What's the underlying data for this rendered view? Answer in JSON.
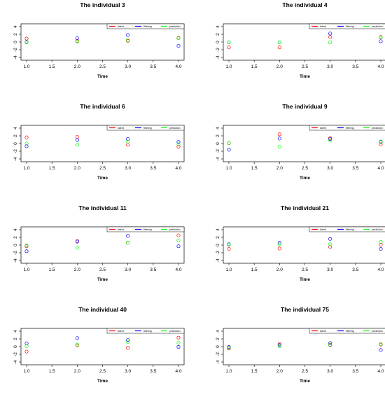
{
  "legend": {
    "entries": [
      "latent",
      "filtering",
      "prediction"
    ],
    "colors": [
      "#ff0000",
      "#0000ff",
      "#00ff00"
    ]
  },
  "chart_data": [
    {
      "type": "scatter",
      "title": "The individual 3",
      "xlabel": "Time",
      "ylabel": "",
      "x": [
        1,
        2,
        3,
        4
      ],
      "xticks": [
        "1.0",
        "1.5",
        "2.0",
        "2.5",
        "3.0",
        "3.5",
        "4.0"
      ],
      "yticks": [
        "-4",
        "-2",
        "0",
        "2",
        "4"
      ],
      "xlim": [
        1,
        4
      ],
      "ylim": [
        -4,
        4
      ],
      "series": [
        {
          "name": "latent",
          "values": [
            0.9,
            0.3,
            0.3,
            1.1
          ]
        },
        {
          "name": "filtering",
          "values": [
            0.0,
            1.0,
            1.8,
            -1.0
          ]
        },
        {
          "name": "prediction",
          "values": [
            -0.1,
            0.1,
            0.5,
            1.0
          ]
        }
      ]
    },
    {
      "type": "scatter",
      "title": "The individual 4",
      "xlabel": "Time",
      "ylabel": "",
      "x": [
        1,
        2,
        3,
        4
      ],
      "xticks": [
        "1.0",
        "1.5",
        "2.0",
        "2.5",
        "3.0",
        "3.5",
        "4.0"
      ],
      "yticks": [
        "-4",
        "-2",
        "0",
        "2",
        "4"
      ],
      "xlim": [
        1,
        4
      ],
      "ylim": [
        -4,
        4
      ],
      "series": [
        {
          "name": "latent",
          "values": [
            -1.4,
            -1.4,
            1.3,
            1.3
          ]
        },
        {
          "name": "filtering",
          "values": [
            -0.1,
            -0.1,
            2.2,
            0.2
          ]
        },
        {
          "name": "prediction",
          "values": [
            -0.1,
            -0.1,
            -0.1,
            1.2
          ]
        }
      ]
    },
    {
      "type": "scatter",
      "title": "The individual 6",
      "xlabel": "Time",
      "ylabel": "",
      "x": [
        1,
        2,
        3,
        4
      ],
      "xticks": [
        "1.0",
        "1.5",
        "2.0",
        "2.5",
        "3.0",
        "3.5",
        "4.0"
      ],
      "yticks": [
        "-4",
        "-2",
        "0",
        "2",
        "4"
      ],
      "xlim": [
        1,
        4
      ],
      "ylim": [
        -4,
        4
      ],
      "series": [
        {
          "name": "latent",
          "values": [
            1.6,
            1.7,
            -0.3,
            -0.8
          ]
        },
        {
          "name": "filtering",
          "values": [
            -0.7,
            0.9,
            1.2,
            0.4
          ]
        },
        {
          "name": "prediction",
          "values": [
            0.0,
            -0.3,
            0.5,
            -0.2
          ]
        }
      ]
    },
    {
      "type": "scatter",
      "title": "The individual 9",
      "xlabel": "Time",
      "ylabel": "",
      "x": [
        1,
        2,
        3,
        4
      ],
      "xticks": [
        "1.0",
        "1.5",
        "2.0",
        "2.5",
        "3.0",
        "3.5",
        "4.0"
      ],
      "yticks": [
        "-4",
        "-2",
        "0",
        "2",
        "4"
      ],
      "xlim": [
        1,
        4
      ],
      "ylim": [
        -4,
        4
      ],
      "series": [
        {
          "name": "latent",
          "values": [
            0.1,
            2.4,
            1.4,
            -0.2
          ]
        },
        {
          "name": "filtering",
          "values": [
            -1.6,
            1.3,
            1.2,
            0.5
          ]
        },
        {
          "name": "prediction",
          "values": [
            0.1,
            -0.8,
            0.8,
            0.4
          ]
        }
      ]
    },
    {
      "type": "scatter",
      "title": "The individual 11",
      "xlabel": "Time",
      "ylabel": "",
      "x": [
        1,
        2,
        3,
        4
      ],
      "xticks": [
        "1.0",
        "1.5",
        "2.0",
        "2.5",
        "3.0",
        "3.5",
        "4.0"
      ],
      "yticks": [
        "-4",
        "-2",
        "0",
        "2",
        "4"
      ],
      "xlim": [
        1,
        4
      ],
      "ylim": [
        -4,
        4
      ],
      "series": [
        {
          "name": "latent",
          "values": [
            -0.3,
            1.0,
            0.6,
            2.5
          ]
        },
        {
          "name": "filtering",
          "values": [
            -1.6,
            0.9,
            2.4,
            -0.3
          ]
        },
        {
          "name": "prediction",
          "values": [
            -0.1,
            -0.7,
            0.6,
            1.2
          ]
        }
      ]
    },
    {
      "type": "scatter",
      "title": "The individual 21",
      "xlabel": "Time",
      "ylabel": "",
      "x": [
        1,
        2,
        3,
        4
      ],
      "xticks": [
        "1.0",
        "1.5",
        "2.0",
        "2.5",
        "3.0",
        "3.5",
        "4.0"
      ],
      "yticks": [
        "-4",
        "-2",
        "0",
        "2",
        "4"
      ],
      "xlim": [
        1,
        4
      ],
      "ylim": [
        -4,
        4
      ],
      "series": [
        {
          "name": "latent",
          "values": [
            -1.0,
            -0.9,
            -0.5,
            0.1
          ]
        },
        {
          "name": "filtering",
          "values": [
            0.2,
            0.6,
            1.6,
            -1.0
          ]
        },
        {
          "name": "prediction",
          "values": [
            0.1,
            0.2,
            0.2,
            0.8
          ]
        }
      ]
    },
    {
      "type": "scatter",
      "title": "The individual 40",
      "xlabel": "Time",
      "ylabel": "",
      "x": [
        1,
        2,
        3,
        4
      ],
      "xticks": [
        "1.0",
        "1.5",
        "2.0",
        "2.5",
        "3.0",
        "3.5",
        "4.0"
      ],
      "yticks": [
        "-4",
        "-2",
        "0",
        "2",
        "4"
      ],
      "xlim": [
        1,
        4
      ],
      "ylim": [
        -4,
        4
      ],
      "series": [
        {
          "name": "latent",
          "values": [
            -1.3,
            0.3,
            -0.3,
            2.3
          ]
        },
        {
          "name": "filtering",
          "values": [
            0.8,
            2.2,
            1.7,
            -0.1
          ]
        },
        {
          "name": "prediction",
          "values": [
            0.1,
            0.5,
            1.2,
            1.0
          ]
        }
      ]
    },
    {
      "type": "scatter",
      "title": "The individual 75",
      "xlabel": "Time",
      "ylabel": "",
      "x": [
        1,
        2,
        3,
        4
      ],
      "xticks": [
        "1.0",
        "1.5",
        "2.0",
        "2.5",
        "3.0",
        "3.5",
        "4.0"
      ],
      "yticks": [
        "-4",
        "-2",
        "0",
        "2",
        "4"
      ],
      "xlim": [
        1,
        4
      ],
      "ylim": [
        -4,
        4
      ],
      "series": [
        {
          "name": "latent",
          "values": [
            -0.5,
            0.7,
            0.4,
            0.5
          ]
        },
        {
          "name": "filtering",
          "values": [
            -0.1,
            0.4,
            0.9,
            -0.9
          ]
        },
        {
          "name": "prediction",
          "values": [
            -0.3,
            0.1,
            0.5,
            0.7
          ]
        }
      ]
    }
  ]
}
